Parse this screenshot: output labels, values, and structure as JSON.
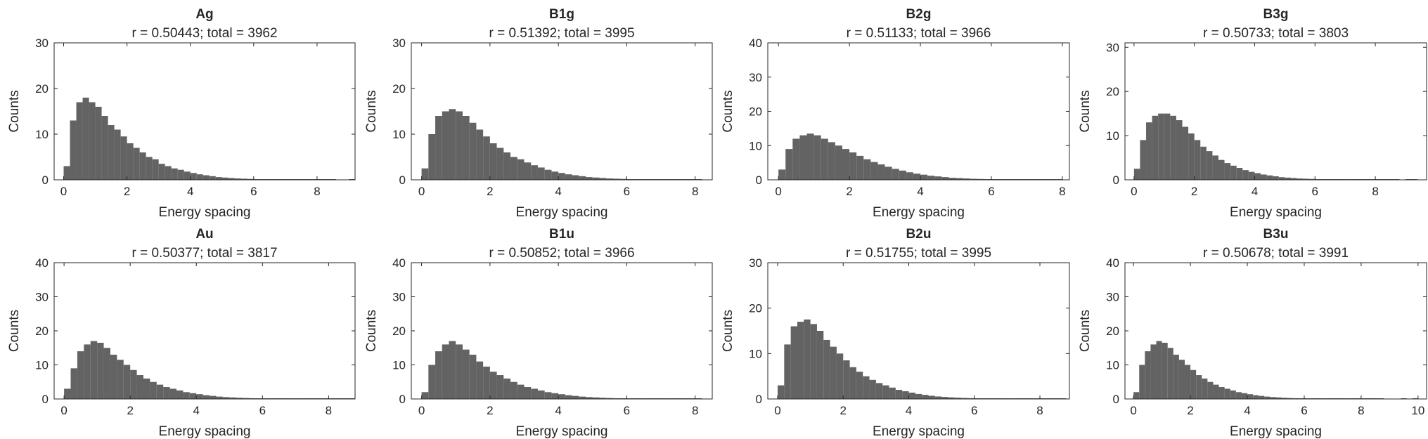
{
  "chart_data": [
    {
      "type": "bar",
      "title": "Ag",
      "subtitle": "r = 0.50443; total = 3962",
      "xlabel": "Energy spacing",
      "ylabel": "Counts",
      "xlim": [
        -0.3,
        9.2
      ],
      "ylim": [
        0,
        30
      ],
      "xticks": [
        "0",
        "2",
        "4",
        "6",
        "8"
      ],
      "yticks": [
        "0",
        "10",
        "20",
        "30"
      ],
      "x": [
        0.1,
        0.3,
        0.5,
        0.7,
        0.9,
        1.1,
        1.3,
        1.5,
        1.7,
        1.9,
        2.1,
        2.3,
        2.5,
        2.7,
        2.9,
        3.1,
        3.3,
        3.5,
        3.7,
        3.9,
        4.1,
        4.3,
        4.5,
        4.7,
        4.9,
        5.1,
        5.3,
        5.5,
        5.7,
        5.9,
        6.1,
        6.3,
        6.5,
        6.7,
        6.9,
        7.1,
        7.3,
        7.5,
        7.7,
        7.9,
        8.1,
        8.3,
        8.5,
        8.7,
        8.9,
        9.1
      ],
      "values": [
        3,
        13,
        17,
        18,
        17,
        16,
        14,
        12,
        11,
        9.5,
        8,
        7,
        6,
        5,
        4.5,
        3.5,
        3,
        2.5,
        2.2,
        1.8,
        1.5,
        1.2,
        1,
        0.8,
        0.6,
        0.5,
        0.4,
        0.3,
        0.25,
        0.2,
        0.15,
        0.12,
        0.1,
        0.08,
        0.06,
        0.05,
        0.04,
        0.03,
        0.02,
        0.02,
        0.01,
        0.01,
        0.01,
        0,
        0,
        0.01
      ]
    },
    {
      "type": "bar",
      "title": "B1g",
      "subtitle": "r = 0.51392; total = 3995",
      "xlabel": "Energy spacing",
      "ylabel": "Counts",
      "xlim": [
        -0.3,
        8.5
      ],
      "ylim": [
        0,
        30
      ],
      "xticks": [
        "0",
        "2",
        "4",
        "6",
        "8"
      ],
      "yticks": [
        "0",
        "10",
        "20",
        "30"
      ],
      "x": [
        0.1,
        0.3,
        0.5,
        0.7,
        0.9,
        1.1,
        1.3,
        1.5,
        1.7,
        1.9,
        2.1,
        2.3,
        2.5,
        2.7,
        2.9,
        3.1,
        3.3,
        3.5,
        3.7,
        3.9,
        4.1,
        4.3,
        4.5,
        4.7,
        4.9,
        5.1,
        5.3,
        5.5,
        5.7,
        5.9,
        6.1,
        6.3,
        6.5,
        6.7,
        6.9,
        7.1,
        7.3,
        7.5,
        7.7,
        7.9,
        8.1
      ],
      "values": [
        2.5,
        10,
        14,
        15,
        15.5,
        15,
        14,
        12.5,
        11,
        9.5,
        8,
        7,
        6,
        5,
        4.5,
        3.8,
        3.2,
        2.7,
        2.2,
        1.8,
        1.5,
        1.2,
        1,
        0.8,
        0.6,
        0.5,
        0.4,
        0.3,
        0.25,
        0.2,
        0.15,
        0.12,
        0.1,
        0.08,
        0.06,
        0.05,
        0.04,
        0.03,
        0.02,
        0.02,
        0.01
      ]
    },
    {
      "type": "bar",
      "title": "B2g",
      "subtitle": "r = 0.51133; total = 3966",
      "xlabel": "Energy spacing",
      "ylabel": "Counts",
      "xlim": [
        -0.3,
        8.2
      ],
      "ylim": [
        0,
        40
      ],
      "xticks": [
        "0",
        "2",
        "4",
        "6",
        "8"
      ],
      "yticks": [
        "0",
        "10",
        "20",
        "30",
        "40"
      ],
      "x": [
        0.1,
        0.3,
        0.5,
        0.7,
        0.9,
        1.1,
        1.3,
        1.5,
        1.7,
        1.9,
        2.1,
        2.3,
        2.5,
        2.7,
        2.9,
        3.1,
        3.3,
        3.5,
        3.7,
        3.9,
        4.1,
        4.3,
        4.5,
        4.7,
        4.9,
        5.1,
        5.3,
        5.5,
        5.7,
        5.9,
        6.1,
        6.3,
        6.5,
        6.7,
        6.9,
        7.1,
        7.3,
        7.5,
        7.7,
        7.9
      ],
      "values": [
        3,
        9,
        12,
        13,
        13.5,
        13,
        12,
        11,
        10,
        9,
        8,
        7,
        6,
        5.2,
        4.5,
        3.8,
        3.2,
        2.7,
        2.2,
        1.8,
        1.5,
        1.2,
        1,
        0.8,
        0.6,
        0.5,
        0.4,
        0.3,
        0.25,
        0.2,
        0.15,
        0.12,
        0.1,
        0.08,
        0.06,
        0.05,
        0.04,
        0.03,
        0.02,
        0.01
      ]
    },
    {
      "type": "bar",
      "title": "B3g",
      "subtitle": "r = 0.50733; total = 3803",
      "xlabel": "Energy spacing",
      "ylabel": "Counts",
      "xlim": [
        -0.3,
        9.7
      ],
      "ylim": [
        0,
        31
      ],
      "xticks": [
        "0",
        "2",
        "4",
        "6",
        "8"
      ],
      "yticks": [
        "0",
        "10",
        "20",
        "30"
      ],
      "x": [
        0.1,
        0.3,
        0.5,
        0.7,
        0.9,
        1.1,
        1.3,
        1.5,
        1.7,
        1.9,
        2.1,
        2.3,
        2.5,
        2.7,
        2.9,
        3.1,
        3.3,
        3.5,
        3.7,
        3.9,
        4.1,
        4.3,
        4.5,
        4.7,
        4.9,
        5.1,
        5.3,
        5.5,
        5.7,
        5.9,
        6.1,
        6.3,
        6.5,
        6.7,
        6.9,
        7.1,
        7.3,
        7.5,
        7.7,
        7.9,
        8.1,
        8.3,
        8.5,
        8.7,
        8.9,
        9.1,
        9.3
      ],
      "values": [
        2.5,
        9,
        13,
        14.5,
        15,
        15,
        14.5,
        13.5,
        12,
        10.5,
        9,
        7.5,
        6.5,
        5.5,
        4.5,
        3.8,
        3.2,
        2.7,
        2.2,
        1.8,
        1.5,
        1.2,
        1,
        0.8,
        0.6,
        0.5,
        0.4,
        0.3,
        0.25,
        0.2,
        0.15,
        0.12,
        0.1,
        0.08,
        0.06,
        0.05,
        0.04,
        0.03,
        0.02,
        0.02,
        0.01,
        0.01,
        0.01,
        0.01,
        0,
        0.01,
        0.01
      ]
    },
    {
      "type": "bar",
      "title": "Au",
      "subtitle": "r = 0.50377; total = 3817",
      "xlabel": "Energy spacing",
      "ylabel": "Counts",
      "xlim": [
        -0.3,
        8.8
      ],
      "ylim": [
        0,
        40
      ],
      "xticks": [
        "0",
        "2",
        "4",
        "6",
        "8"
      ],
      "yticks": [
        "0",
        "10",
        "20",
        "30",
        "40"
      ],
      "x": [
        0.1,
        0.3,
        0.5,
        0.7,
        0.9,
        1.1,
        1.3,
        1.5,
        1.7,
        1.9,
        2.1,
        2.3,
        2.5,
        2.7,
        2.9,
        3.1,
        3.3,
        3.5,
        3.7,
        3.9,
        4.1,
        4.3,
        4.5,
        4.7,
        4.9,
        5.1,
        5.3,
        5.5,
        5.7,
        5.9,
        6.1,
        6.3,
        6.5,
        6.7,
        6.9,
        7.1,
        7.3,
        7.5,
        7.7,
        7.9,
        8.1,
        8.3,
        8.5,
        8.7
      ],
      "values": [
        3,
        9,
        14,
        16,
        17,
        16.5,
        15,
        13,
        11.5,
        10,
        8.5,
        7,
        6,
        5,
        4.2,
        3.5,
        3,
        2.5,
        2,
        1.7,
        1.4,
        1.1,
        0.9,
        0.7,
        0.55,
        0.45,
        0.35,
        0.28,
        0.22,
        0.18,
        0.14,
        0.11,
        0.09,
        0.07,
        0.05,
        0.04,
        0.03,
        0.02,
        0.02,
        0.01,
        0.01,
        0.01,
        0.01,
        0.01
      ]
    },
    {
      "type": "bar",
      "title": "B1u",
      "subtitle": "r = 0.50852; total = 3966",
      "xlabel": "Energy spacing",
      "ylabel": "Counts",
      "xlim": [
        -0.3,
        8.5
      ],
      "ylim": [
        0,
        40
      ],
      "xticks": [
        "0",
        "2",
        "4",
        "6",
        "8"
      ],
      "yticks": [
        "0",
        "10",
        "20",
        "30",
        "40"
      ],
      "x": [
        0.1,
        0.3,
        0.5,
        0.7,
        0.9,
        1.1,
        1.3,
        1.5,
        1.7,
        1.9,
        2.1,
        2.3,
        2.5,
        2.7,
        2.9,
        3.1,
        3.3,
        3.5,
        3.7,
        3.9,
        4.1,
        4.3,
        4.5,
        4.7,
        4.9,
        5.1,
        5.3,
        5.5,
        5.7,
        5.9,
        6.1,
        6.3,
        6.5,
        6.7,
        6.9,
        7.1,
        7.3,
        7.5,
        7.7,
        7.9,
        8.1
      ],
      "values": [
        2,
        10,
        14,
        16,
        17,
        16,
        14.5,
        13,
        11,
        9.5,
        8,
        7,
        6,
        5,
        4.2,
        3.5,
        3,
        2.5,
        2,
        1.7,
        1.4,
        1.1,
        0.9,
        0.7,
        0.55,
        0.45,
        0.35,
        0.28,
        0.22,
        0.18,
        0.14,
        0.11,
        0.09,
        0.07,
        0.05,
        0.04,
        0.03,
        0.02,
        0.02,
        0.01,
        0.01
      ]
    },
    {
      "type": "bar",
      "title": "B2u",
      "subtitle": "r = 0.51755; total = 3995",
      "xlabel": "Energy spacing",
      "ylabel": "Counts",
      "xlim": [
        -0.3,
        8.9
      ],
      "ylim": [
        0,
        30
      ],
      "xticks": [
        "0",
        "2",
        "4",
        "6",
        "8"
      ],
      "yticks": [
        "0",
        "10",
        "20",
        "30"
      ],
      "x": [
        0.1,
        0.3,
        0.5,
        0.7,
        0.9,
        1.1,
        1.3,
        1.5,
        1.7,
        1.9,
        2.1,
        2.3,
        2.5,
        2.7,
        2.9,
        3.1,
        3.3,
        3.5,
        3.7,
        3.9,
        4.1,
        4.3,
        4.5,
        4.7,
        4.9,
        5.1,
        5.3,
        5.5,
        5.7,
        5.9,
        6.1,
        6.3,
        6.5,
        6.7,
        6.9,
        7.1,
        7.3,
        7.5,
        7.7,
        7.9,
        8.1,
        8.3,
        8.5,
        8.7
      ],
      "values": [
        3,
        12,
        16,
        17,
        17.5,
        16.5,
        15,
        13,
        11.5,
        10,
        8.5,
        7,
        6,
        5,
        4.2,
        3.5,
        3,
        2.5,
        2,
        1.7,
        1.4,
        1.1,
        0.9,
        0.7,
        0.55,
        0.45,
        0.35,
        0.28,
        0.22,
        0.18,
        0.14,
        0.11,
        0.09,
        0.07,
        0.05,
        0.04,
        0.03,
        0.02,
        0.02,
        0.01,
        0.01,
        0.01,
        0.01,
        0.01
      ]
    },
    {
      "type": "bar",
      "title": "B3u",
      "subtitle": "r = 0.50678; total = 3991",
      "xlabel": "Energy spacing",
      "ylabel": "Counts",
      "xlim": [
        -0.3,
        10.3
      ],
      "ylim": [
        0,
        40
      ],
      "xticks": [
        "0",
        "2",
        "4",
        "6",
        "8",
        "10"
      ],
      "yticks": [
        "0",
        "10",
        "20",
        "30",
        "40"
      ],
      "x": [
        0.1,
        0.3,
        0.5,
        0.7,
        0.9,
        1.1,
        1.3,
        1.5,
        1.7,
        1.9,
        2.1,
        2.3,
        2.5,
        2.7,
        2.9,
        3.1,
        3.3,
        3.5,
        3.7,
        3.9,
        4.1,
        4.3,
        4.5,
        4.7,
        4.9,
        5.1,
        5.3,
        5.5,
        5.7,
        5.9,
        6.1,
        6.3,
        6.5,
        6.7,
        6.9,
        7.1,
        7.3,
        7.5,
        7.7,
        7.9,
        8.1,
        8.3,
        8.5,
        8.7,
        8.9,
        9.1,
        9.3,
        9.5,
        9.7,
        9.9
      ],
      "values": [
        2,
        10,
        14,
        16,
        17,
        16.5,
        15,
        13,
        11.5,
        10,
        8.5,
        7,
        6,
        5,
        4.2,
        3.5,
        3,
        2.5,
        2,
        1.7,
        1.4,
        1.1,
        0.9,
        0.7,
        0.55,
        0.45,
        0.35,
        0.28,
        0.22,
        0.18,
        0.14,
        0.11,
        0.09,
        0.07,
        0.05,
        0.04,
        0.03,
        0.02,
        0.02,
        0.01,
        0.01,
        0.01,
        0.01,
        0.01,
        0,
        0,
        0,
        0.01,
        0,
        0.01
      ]
    }
  ],
  "style": {
    "bar_color": "#636363",
    "axis_color": "#262626",
    "background": "#ffffff"
  }
}
